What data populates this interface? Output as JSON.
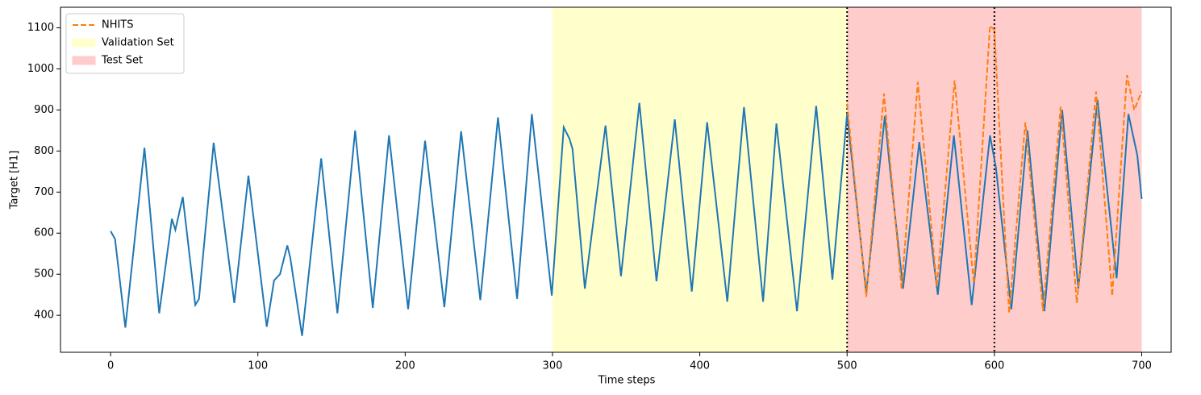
{
  "chart_data": {
    "type": "line",
    "xlabel": "Time steps",
    "ylabel": "Target [H1]",
    "xlim": [
      -34,
      720
    ],
    "ylim": [
      310,
      1150
    ],
    "xticks": [
      0,
      100,
      200,
      300,
      400,
      500,
      600,
      700
    ],
    "yticks": [
      400,
      500,
      600,
      700,
      800,
      900,
      1000,
      1100
    ],
    "legend": "upper left",
    "spans": [
      {
        "name": "Validation Set",
        "start": 300,
        "end": 500,
        "color": "#ffffcc"
      },
      {
        "name": "Test Set",
        "start": 500,
        "end": 700,
        "color": "#ffcccc"
      }
    ],
    "vlines": [
      500,
      600
    ],
    "series": [
      {
        "color": "#1f77b4",
        "x": [
          0,
          3,
          10,
          23,
          33,
          41.6,
          44,
          49,
          57.5,
          60,
          70,
          84,
          93.6,
          106,
          111,
          115,
          120,
          122,
          130,
          143,
          154,
          166,
          178,
          189,
          202,
          213.5,
          226.6,
          238,
          251,
          263,
          276,
          286,
          299.5,
          307.6,
          311.5,
          313.6,
          322,
          336,
          346.5,
          359,
          370.6,
          383,
          394.6,
          405,
          418.7,
          430,
          443,
          452,
          466,
          479,
          490,
          500,
          513,
          525.6,
          529,
          538,
          549,
          561.6,
          572.5,
          584.6,
          597,
          601,
          611.5,
          622.5,
          634,
          646,
          657,
          670,
          683,
          691,
          697,
          700
        ],
        "values": [
          605,
          586,
          370,
          808,
          405,
          635,
          608,
          688,
          425,
          440,
          820,
          430,
          740,
          372,
          485,
          500,
          570,
          540,
          350,
          782,
          405,
          850,
          418,
          838,
          415,
          825,
          420,
          848,
          437,
          882,
          440,
          890,
          448,
          858,
          830,
          805,
          465,
          862,
          495,
          917,
          483,
          877,
          458,
          870,
          433,
          907,
          433,
          867,
          410,
          910,
          487,
          890,
          455,
          885,
          760,
          465,
          822,
          450,
          838,
          425,
          838,
          760,
          415,
          850,
          410,
          900,
          465,
          925,
          490,
          890,
          790,
          683
        ]
      },
      {
        "name": "NHITS",
        "color": "#ff7f0e",
        "dash": true,
        "x": [
          500,
          513,
          525,
          537,
          548,
          561,
          573,
          586,
          597,
          600,
          610,
          621,
          633,
          645,
          656,
          669,
          680,
          690,
          695,
          700
        ],
        "values": [
          915,
          445,
          940,
          465,
          968,
          470,
          972,
          478,
          1105,
          1095,
          405,
          870,
          410,
          908,
          430,
          945,
          447,
          985,
          900,
          945
        ]
      }
    ]
  }
}
